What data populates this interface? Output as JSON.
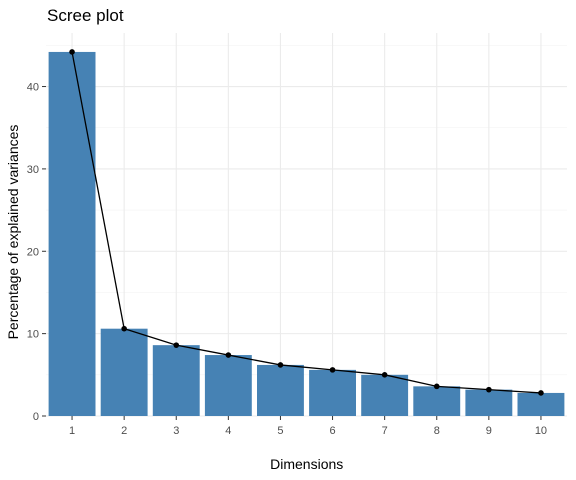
{
  "chart_data": {
    "type": "bar",
    "title": "Scree plot",
    "xlabel": "Dimensions",
    "ylabel": "Percentage of explained variances",
    "categories": [
      "1",
      "2",
      "3",
      "4",
      "5",
      "6",
      "7",
      "8",
      "9",
      "10"
    ],
    "values": [
      44.2,
      10.6,
      8.6,
      7.4,
      6.2,
      5.6,
      5.0,
      3.6,
      3.2,
      2.8
    ],
    "overlay_line": {
      "type": "line",
      "values": [
        44.2,
        10.6,
        8.6,
        7.4,
        6.2,
        5.6,
        5.0,
        3.6,
        3.2,
        2.8
      ],
      "markers": true,
      "color": "#000000"
    },
    "ylim": [
      0,
      46.5
    ],
    "yticks": [
      0,
      10,
      20,
      30,
      40
    ],
    "grid": true,
    "legend": "none",
    "colors": {
      "bar_fill": "#4682b4",
      "grid_major": "#ebebeb",
      "grid_minor": "#f3f3f3",
      "tick_text": "#4d4d4d",
      "text": "#000000"
    }
  }
}
